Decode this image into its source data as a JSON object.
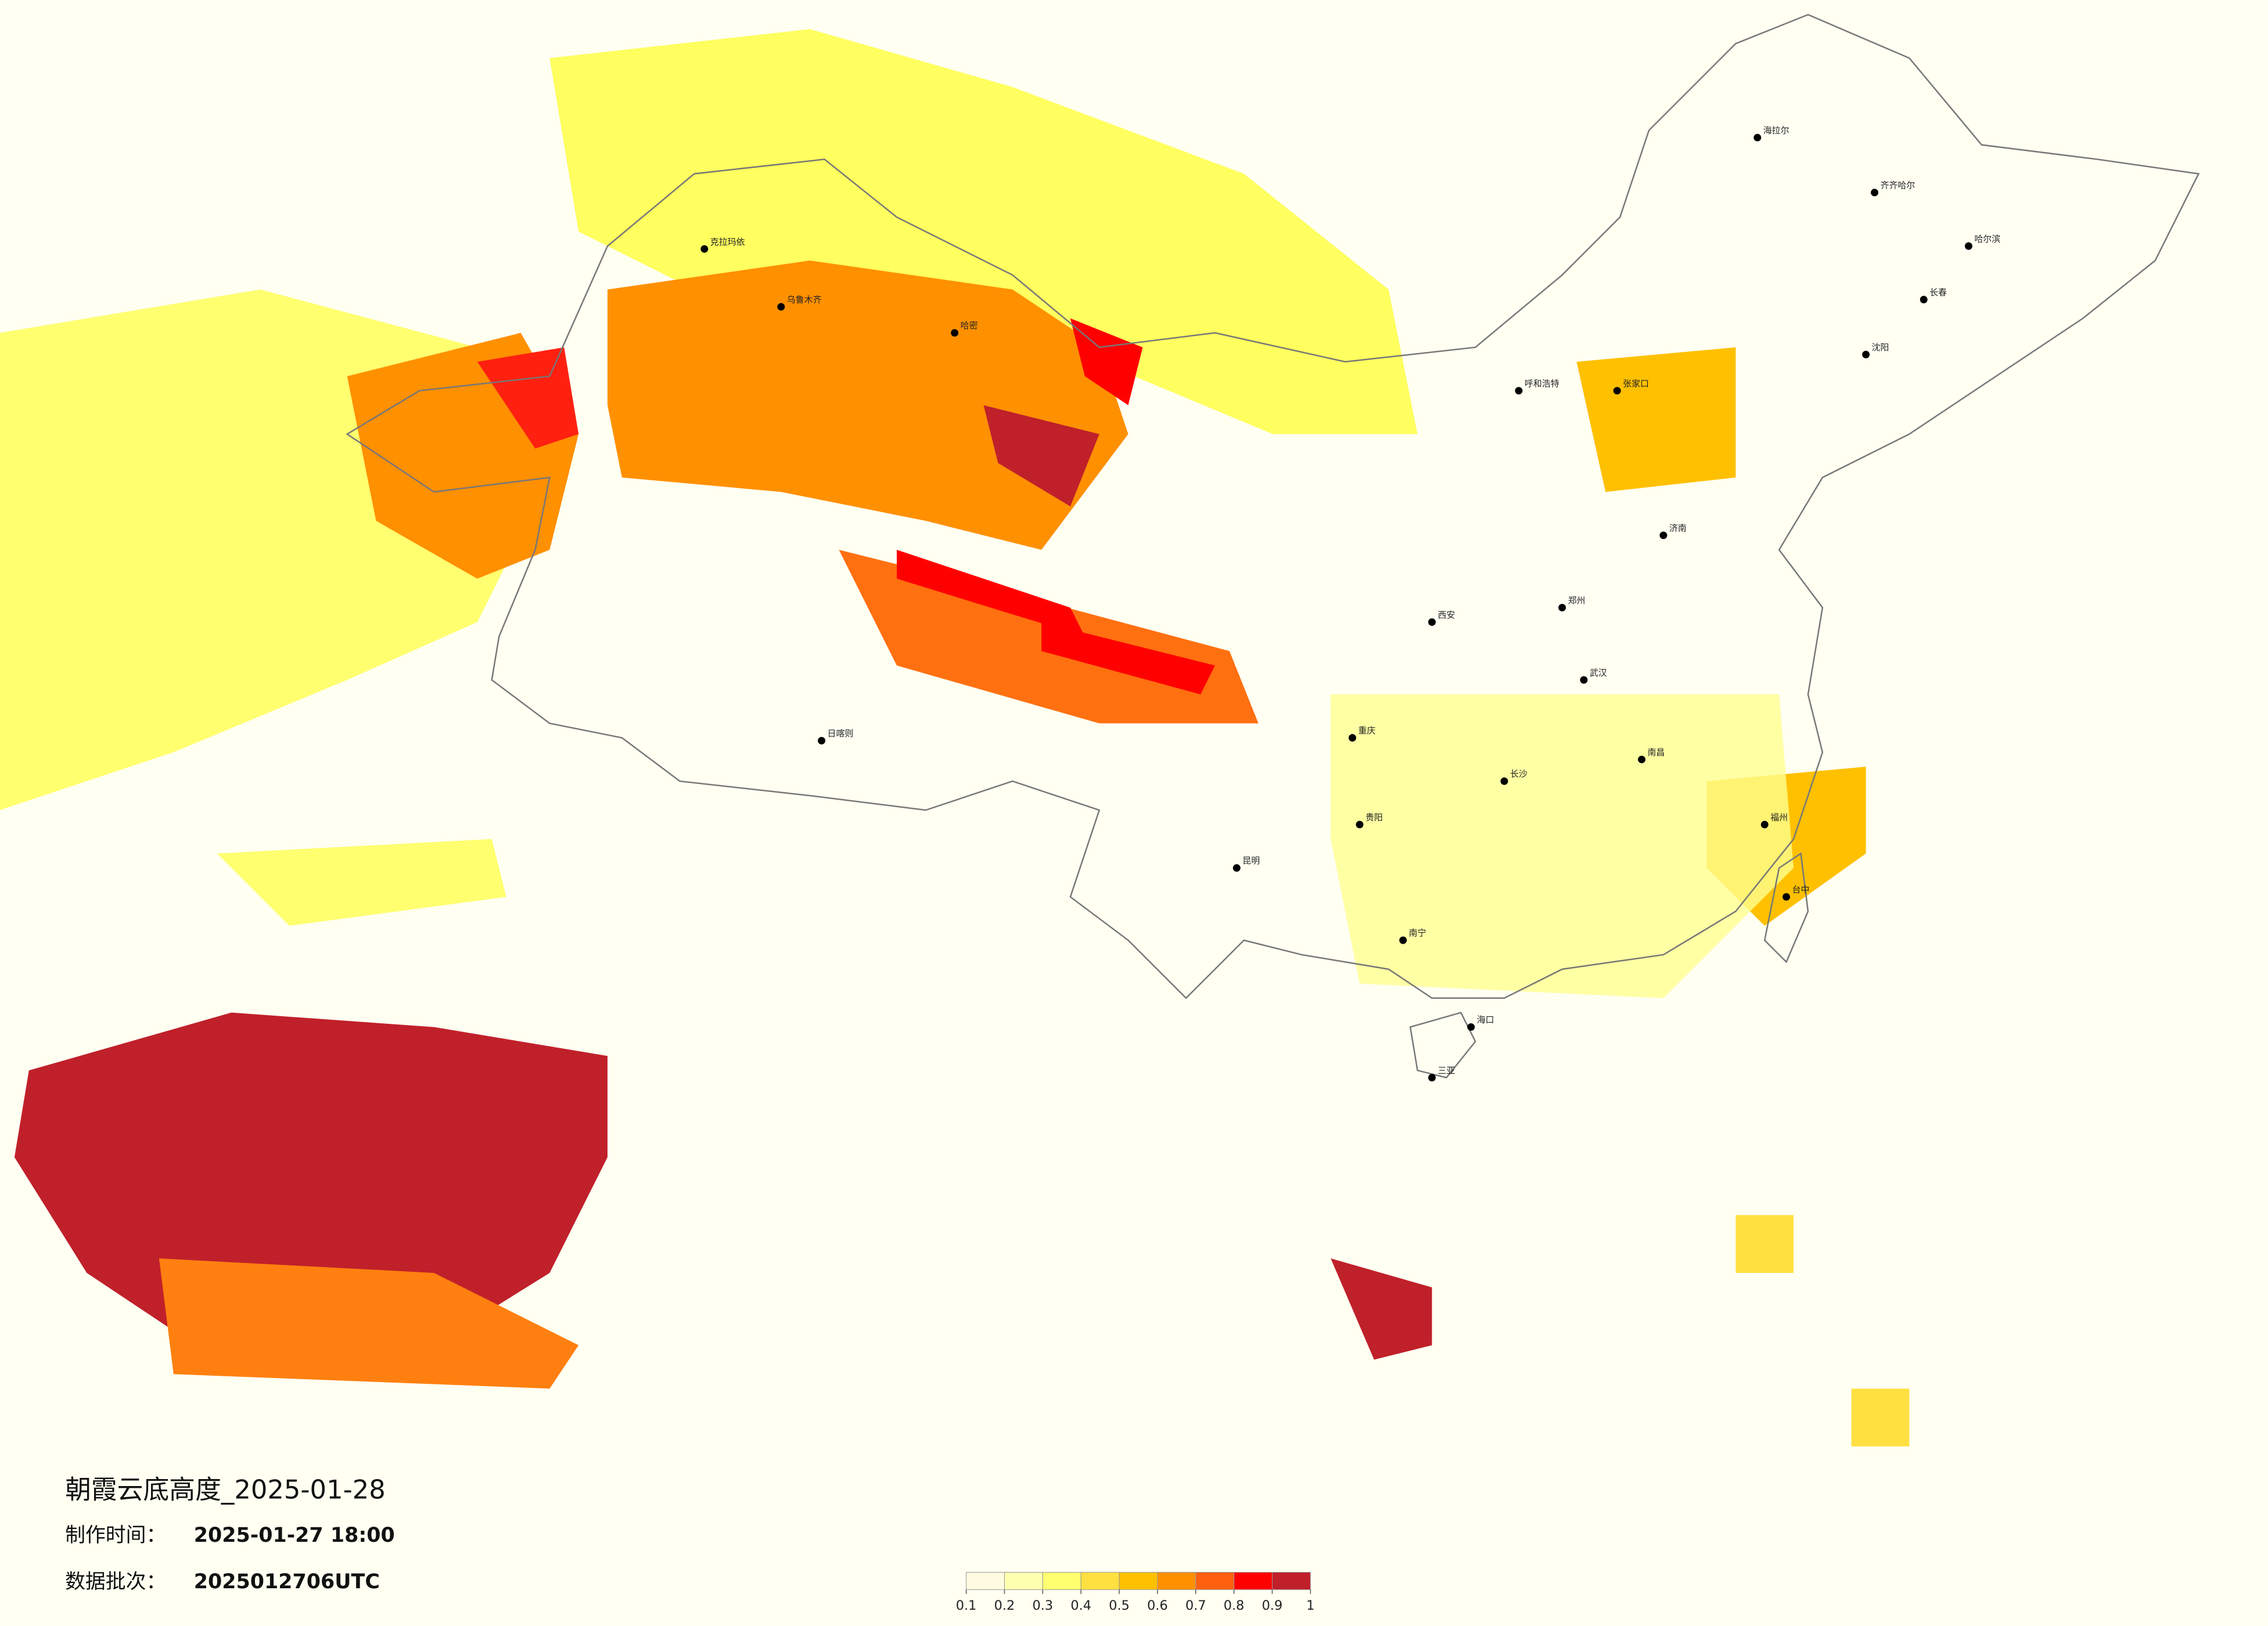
{
  "header": {
    "title": "朝霞云底高度_2025-01-28",
    "made_label": "制作时间：",
    "made_value": "2025-01-27 18:00",
    "batch_label": "数据批次：",
    "batch_value": "2025012706UTC"
  },
  "colorbar": {
    "ticks": [
      0.1,
      0.2,
      0.3,
      0.4,
      0.5,
      0.6,
      0.7,
      0.8,
      0.9,
      1
    ],
    "colors": [
      "#fffbe0",
      "#ffffb0",
      "#ffff70",
      "#ffe040",
      "#ffc000",
      "#ff9000",
      "#ff6010",
      "#ff0000",
      "#c0202a"
    ]
  },
  "cities": [
    "海拉尔",
    "齐齐哈尔",
    "哈尔滨",
    "长春",
    "沈阳",
    "呼和浩特",
    "张家口",
    "克拉玛依",
    "乌鲁木齐",
    "哈密",
    "日喀则",
    "重庆",
    "贵阳",
    "昆明",
    "南宁",
    "海口",
    "三亚",
    "长沙",
    "南昌",
    "福州",
    "武汉",
    "郑州",
    "西安",
    "济南",
    "台中"
  ]
}
